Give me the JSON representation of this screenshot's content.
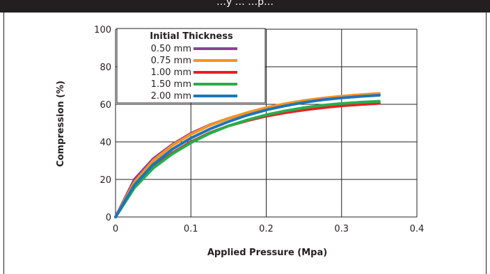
{
  "header": {
    "title": "…y … …p…"
  },
  "chart_data": {
    "type": "line",
    "title": "",
    "xlabel": "Applied Pressure (Mpa)",
    "ylabel": "Compression (%)",
    "xlim": [
      0,
      0.4
    ],
    "ylim": [
      0,
      100
    ],
    "x_ticks": [
      "0",
      "0.1",
      "0.2",
      "0.3",
      "0.4"
    ],
    "y_ticks": [
      "0",
      "20",
      "40",
      "60",
      "80",
      "100"
    ],
    "grid": true,
    "legend_title": "Initial Thickness",
    "legend_position": "top-left",
    "series": [
      {
        "name": "0.50 mm",
        "color": "#8e3f97",
        "x": [
          0,
          0.025,
          0.05,
          0.075,
          0.1,
          0.125,
          0.15,
          0.175,
          0.2,
          0.225,
          0.25,
          0.275,
          0.3,
          0.325,
          0.35
        ],
        "y": [
          0,
          20,
          31,
          38.5,
          44.5,
          49,
          52.5,
          55.5,
          58,
          60,
          61.5,
          62.8,
          63.8,
          64.6,
          65.3
        ]
      },
      {
        "name": "0.75 mm",
        "color": "#f7941d",
        "x": [
          0,
          0.025,
          0.05,
          0.075,
          0.1,
          0.125,
          0.15,
          0.175,
          0.2,
          0.225,
          0.25,
          0.275,
          0.3,
          0.325,
          0.35
        ],
        "y": [
          0,
          18.5,
          30,
          38,
          44,
          48.8,
          52.5,
          55.6,
          58.2,
          60.3,
          62,
          63.3,
          64.3,
          65.1,
          65.8
        ]
      },
      {
        "name": "1.00 mm",
        "color": "#ed1c24",
        "x": [
          0,
          0.025,
          0.05,
          0.075,
          0.1,
          0.125,
          0.15,
          0.175,
          0.2,
          0.225,
          0.25,
          0.275,
          0.3,
          0.325,
          0.35
        ],
        "y": [
          0,
          16,
          26.5,
          34,
          40,
          44.8,
          48.5,
          51.3,
          53.7,
          55.5,
          57,
          58.2,
          59.2,
          59.9,
          60.5
        ]
      },
      {
        "name": "1.50 mm",
        "color": "#22b14c",
        "x": [
          0,
          0.025,
          0.05,
          0.075,
          0.1,
          0.125,
          0.15,
          0.175,
          0.2,
          0.225,
          0.25,
          0.275,
          0.3,
          0.325,
          0.35
        ],
        "y": [
          0,
          15.5,
          26,
          33.5,
          39.5,
          44.5,
          48.5,
          51.7,
          54.4,
          56.5,
          58.2,
          59.5,
          60.4,
          61.1,
          61.6
        ]
      },
      {
        "name": "2.00 mm",
        "color": "#1b75bb",
        "x": [
          0,
          0.025,
          0.05,
          0.075,
          0.1,
          0.125,
          0.15,
          0.175,
          0.2,
          0.225,
          0.25,
          0.275,
          0.3,
          0.325,
          0.35
        ],
        "y": [
          0,
          17,
          28,
          36,
          42,
          46.8,
          50.8,
          54.2,
          57,
          59.2,
          61,
          62.4,
          63.4,
          64.2,
          64.8
        ]
      }
    ]
  }
}
